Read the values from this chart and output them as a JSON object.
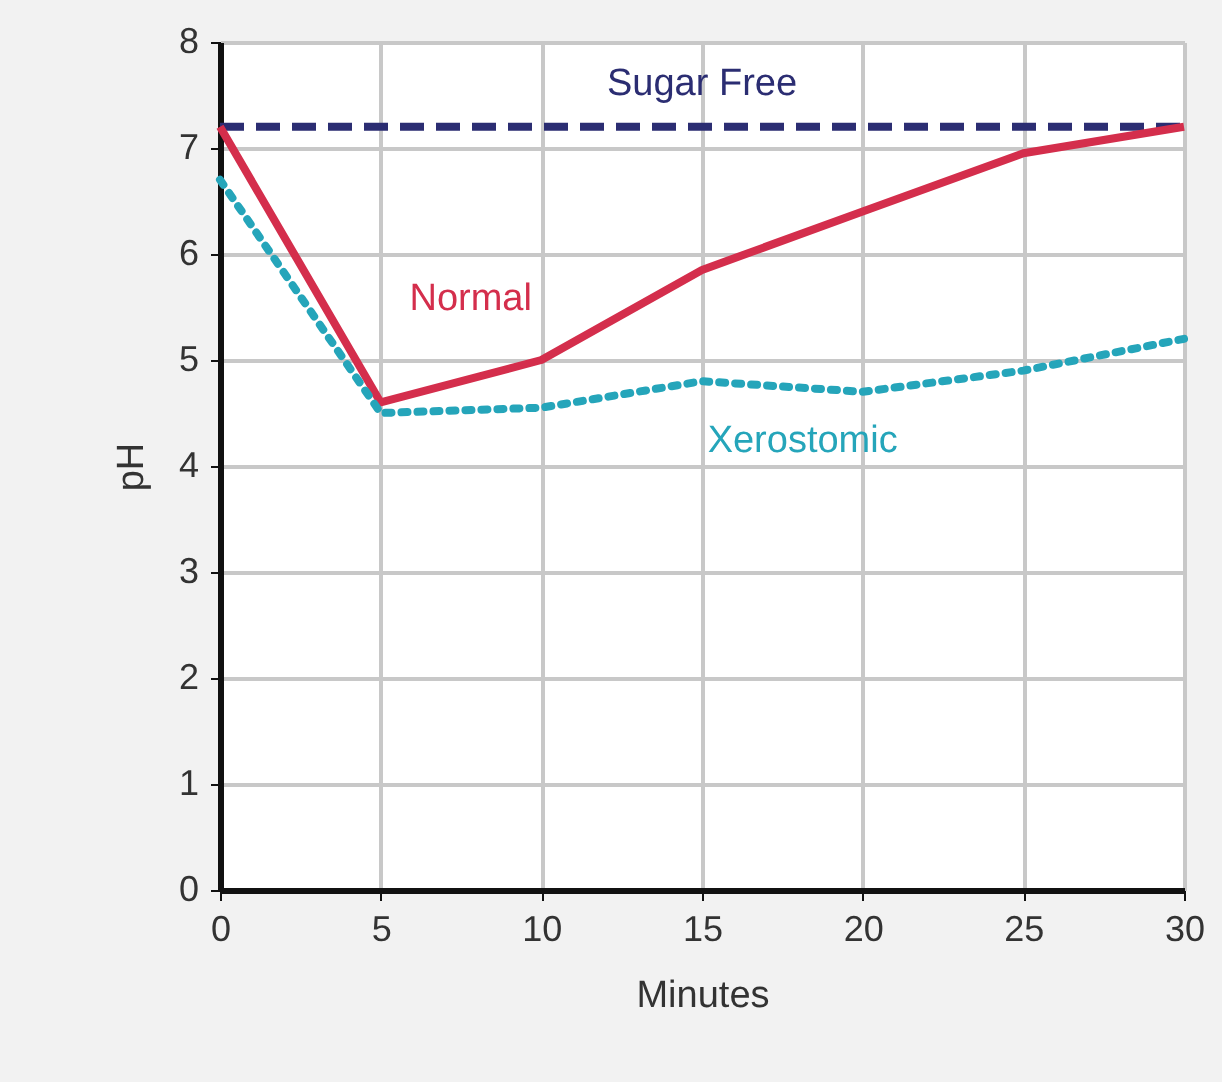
{
  "chart_data": {
    "type": "line",
    "xlabel": "Minutes",
    "ylabel": "pH",
    "x": [
      0,
      5,
      10,
      15,
      20,
      25,
      30
    ],
    "xlim": [
      0,
      30
    ],
    "xticks": [
      0,
      5,
      10,
      15,
      20,
      25,
      30
    ],
    "ylim": [
      0,
      8
    ],
    "yticks": [
      0,
      1,
      2,
      3,
      4,
      5,
      6,
      7,
      8
    ],
    "grid": true,
    "legend": false,
    "marker": "none",
    "series": [
      {
        "name": "Sugar Free",
        "color": "#2b2d72",
        "line_style": "dashed",
        "values": [
          7.2,
          7.2,
          7.2,
          7.2,
          7.2,
          7.2,
          7.2
        ]
      },
      {
        "name": "Normal",
        "color": "#d42e4c",
        "line_style": "solid",
        "values": [
          7.2,
          4.6,
          5.0,
          5.85,
          6.4,
          6.95,
          7.2
        ]
      },
      {
        "name": "Xerostomic",
        "color": "#25a5ba",
        "line_style": "dotted",
        "values": [
          6.7,
          4.5,
          4.55,
          4.8,
          4.7,
          4.9,
          5.2
        ]
      }
    ]
  }
}
